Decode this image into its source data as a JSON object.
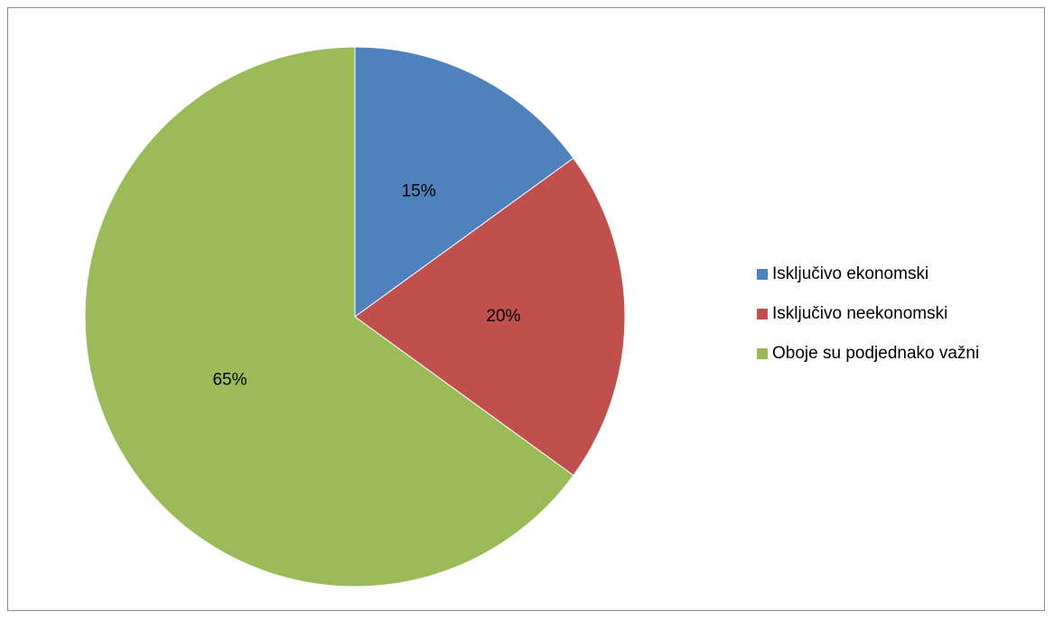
{
  "chart_data": {
    "type": "pie",
    "title": "",
    "categories": [
      "Isključivo ekonomski",
      "Isključivo neekonomski",
      "Oboje su podjednako važni"
    ],
    "values": [
      15,
      20,
      65
    ],
    "data_labels": [
      "15%",
      "20%",
      "65%"
    ],
    "colors": [
      "#4f81bd",
      "#c0504d",
      "#9bbb59"
    ],
    "legend_position": "right",
    "start_angle": "12 o'clock",
    "direction": "clockwise"
  }
}
